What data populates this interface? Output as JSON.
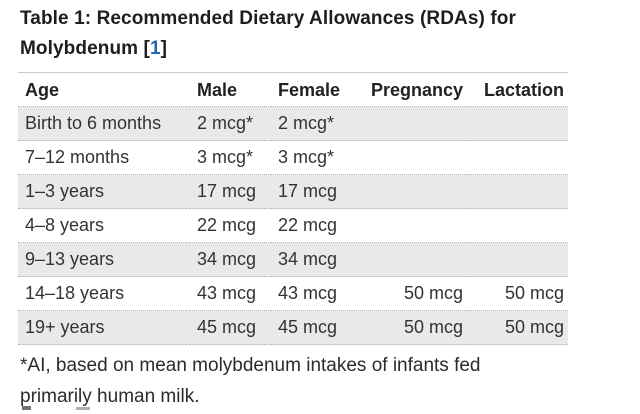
{
  "title": {
    "line1": "Table 1: Recommended Dietary Allowances (RDAs) for",
    "line2_prefix": "Molybdenum [",
    "ref_number": "1",
    "bracket_close": "]"
  },
  "table": {
    "columns": [
      "Age",
      "Male",
      "Female",
      "Pregnancy",
      "Lactation"
    ],
    "rows": [
      {
        "age": "Birth to 6 months",
        "male": "2 mcg*",
        "female": "2 mcg*",
        "pregnancy": "",
        "lactation": ""
      },
      {
        "age": "7–12 months",
        "male": "3 mcg*",
        "female": "3 mcg*",
        "pregnancy": "",
        "lactation": ""
      },
      {
        "age": "1–3 years",
        "male": "17 mcg",
        "female": "17 mcg",
        "pregnancy": "",
        "lactation": ""
      },
      {
        "age": "4–8 years",
        "male": "22 mcg",
        "female": "22 mcg",
        "pregnancy": "",
        "lactation": ""
      },
      {
        "age": "9–13 years",
        "male": "34 mcg",
        "female": "34 mcg",
        "pregnancy": "",
        "lactation": ""
      },
      {
        "age": "14–18 years",
        "male": "43 mcg",
        "female": "43 mcg",
        "pregnancy": "50 mcg",
        "lactation": "50 mcg"
      },
      {
        "age": "19+ years",
        "male": "45 mcg",
        "female": "45 mcg",
        "pregnancy": "50 mcg",
        "lactation": "50 mcg"
      }
    ]
  },
  "footnote": {
    "line1": "*AI, based on mean molybdenum intakes of infants fed",
    "line2": "primarily human milk."
  },
  "colors": {
    "reference_link_blue": "#2167ae",
    "alternate_row_gray": "#e9e9e9",
    "body_text": "#2e2e2e",
    "dotted_border": "#b3b3b3",
    "table_top_border": "#cccccc"
  }
}
